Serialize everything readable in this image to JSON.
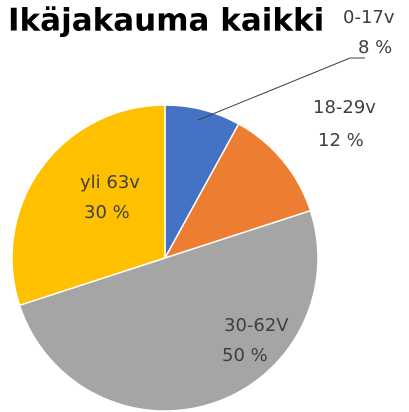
{
  "chart_data": {
    "type": "pie",
    "title": "Ikäjakauma kaikki",
    "categories": [
      "0-17v",
      "18-29v",
      "30-62V",
      "yli 63v"
    ],
    "values": [
      8,
      12,
      50,
      30
    ],
    "value_labels": [
      "8 %",
      "12 %",
      "50 %",
      "30 %"
    ],
    "colors": [
      "#4472c4",
      "#ed7d31",
      "#a5a5a5",
      "#ffc000"
    ]
  }
}
